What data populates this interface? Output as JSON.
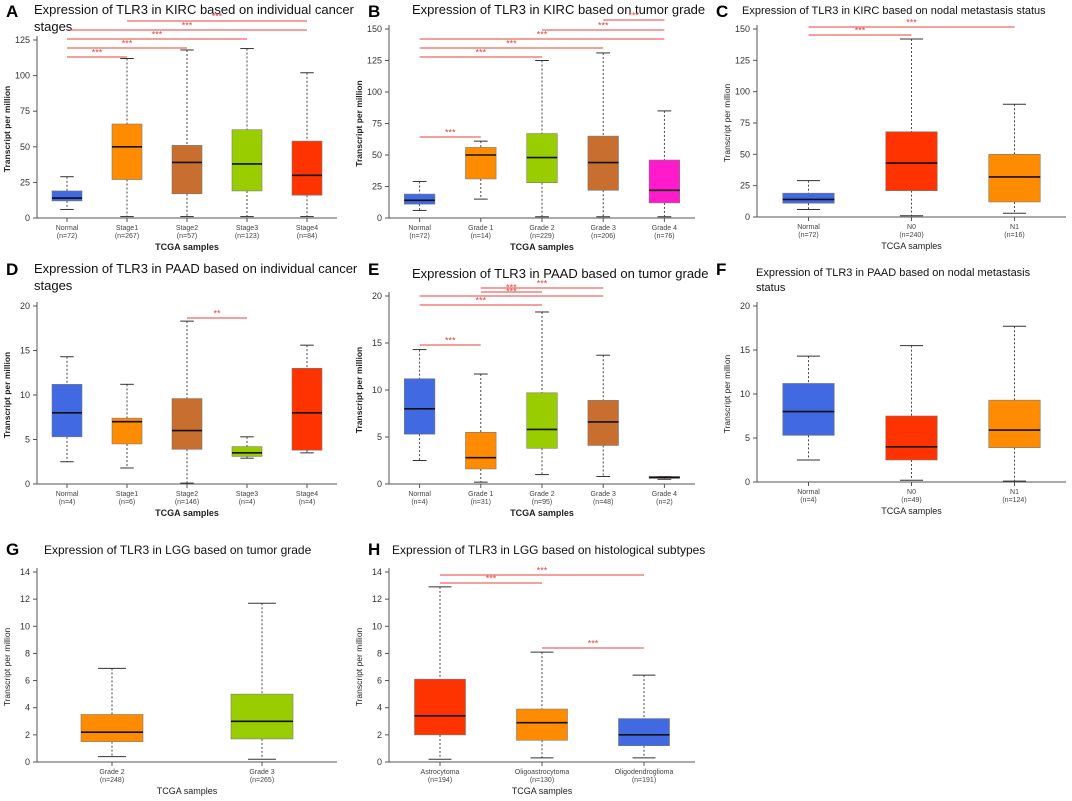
{
  "figure": {
    "significance_color": "#e8423f",
    "box_outline_color": "#7a7a7a",
    "whisker_color": "#333333",
    "median_color": "#111111"
  },
  "chart_data": [
    {
      "id": "A",
      "type": "boxplot",
      "title": "Expression of TLR3 in KIRC based on individual cancer stages",
      "title_lines": [
        "Expression of TLR3 in KIRC based on individual cancer",
        "stages"
      ],
      "xlabel": "TCGA samples",
      "ylabel": "Transcript per million",
      "ylim": [
        0,
        125
      ],
      "yticks": [
        0,
        25,
        50,
        75,
        100,
        125
      ],
      "categories": [
        "Normal",
        "Stage1",
        "Stage2",
        "Stage3",
        "Stage4"
      ],
      "n_labels": [
        "(n=72)",
        "(n=267)",
        "(n=57)",
        "(n=123)",
        "(n=84)"
      ],
      "colors": [
        "#4169e1",
        "#ff8c00",
        "#c86e2e",
        "#9acd00",
        "#ff3300"
      ],
      "boxes": [
        {
          "min": 6,
          "q1": 12,
          "median": 14,
          "q3": 19,
          "max": 29
        },
        {
          "min": 1,
          "q1": 27,
          "median": 50,
          "q3": 66,
          "max": 112
        },
        {
          "min": 1,
          "q1": 17,
          "median": 39,
          "q3": 51,
          "max": 118
        },
        {
          "min": 1,
          "q1": 19,
          "median": 38,
          "q3": 62,
          "max": 119
        },
        {
          "min": 1,
          "q1": 16,
          "median": 30,
          "q3": 54,
          "max": 102
        }
      ],
      "significance": [
        {
          "from": 0,
          "to": 1,
          "label": "***"
        },
        {
          "from": 0,
          "to": 2,
          "label": "***"
        },
        {
          "from": 0,
          "to": 3,
          "label": "***"
        },
        {
          "from": 0,
          "to": 4,
          "label": "***"
        },
        {
          "from": 1,
          "to": 4,
          "label": "***"
        }
      ]
    },
    {
      "id": "B",
      "type": "boxplot",
      "title": "Expression of TLR3 in KIRC based on tumor grade",
      "title_lines": [
        "Expression of TLR3 in KIRC based on tumor grade"
      ],
      "xlabel": "TCGA samples",
      "ylabel": "Transcript per million",
      "ylim": [
        0,
        150
      ],
      "yticks": [
        0,
        25,
        50,
        75,
        100,
        125,
        150
      ],
      "categories": [
        "Normal",
        "Grade 1",
        "Grade 2",
        "Grade 3",
        "Grade 4"
      ],
      "n_labels": [
        "(n=72)",
        "(n=14)",
        "(n=229)",
        "(n=206)",
        "(n=76)"
      ],
      "colors": [
        "#4169e1",
        "#ff8c00",
        "#9acd00",
        "#c86e2e",
        "#ff1acb"
      ],
      "boxes": [
        {
          "min": 6,
          "q1": 11,
          "median": 14,
          "q3": 19,
          "max": 29
        },
        {
          "min": 15,
          "q1": 31,
          "median": 50,
          "q3": 56,
          "max": 61
        },
        {
          "min": 1,
          "q1": 28,
          "median": 48,
          "q3": 67,
          "max": 125
        },
        {
          "min": 1,
          "q1": 22,
          "median": 44,
          "q3": 65,
          "max": 131
        },
        {
          "min": 1,
          "q1": 12,
          "median": 22,
          "q3": 46,
          "max": 85
        }
      ],
      "significance": [
        {
          "from": 0,
          "to": 1,
          "label": "***"
        },
        {
          "from": 0,
          "to": 2,
          "label": "***"
        },
        {
          "from": 0,
          "to": 3,
          "label": "***"
        },
        {
          "from": 0,
          "to": 4,
          "label": "***"
        },
        {
          "from": 2,
          "to": 4,
          "label": "***"
        },
        {
          "from": 3,
          "to": 4,
          "label": "***"
        }
      ]
    },
    {
      "id": "C",
      "type": "boxplot",
      "title": "Expression of TLR3 in KIRC based on nodal metastasis status",
      "title_lines": [
        "Expression of TLR3 in KIRC based on nodal metastasis status"
      ],
      "xlabel": "TCGA samples",
      "ylabel": "Transcript per million",
      "ylim": [
        0,
        150
      ],
      "yticks": [
        0,
        25,
        50,
        75,
        100,
        125,
        150
      ],
      "categories": [
        "Normal",
        "N0",
        "N1"
      ],
      "n_labels": [
        "(n=72)",
        "(n=240)",
        "(n=16)"
      ],
      "colors": [
        "#4169e1",
        "#ff3300",
        "#ff8c00"
      ],
      "boxes": [
        {
          "min": 6,
          "q1": 11,
          "median": 14,
          "q3": 19,
          "max": 29
        },
        {
          "min": 1,
          "q1": 21,
          "median": 43,
          "q3": 68,
          "max": 142
        },
        {
          "min": 3,
          "q1": 12,
          "median": 32,
          "q3": 50,
          "max": 90
        }
      ],
      "significance": [
        {
          "from": 0,
          "to": 1,
          "label": "***"
        },
        {
          "from": 0,
          "to": 2,
          "label": "***"
        }
      ]
    },
    {
      "id": "D",
      "type": "boxplot",
      "title": "Expression of TLR3 in PAAD based on individual cancer stages",
      "title_lines": [
        "Expression of TLR3 in PAAD based on individual cancer",
        "stages"
      ],
      "xlabel": "TCGA samples",
      "ylabel": "Transcript per million",
      "ylim": [
        0,
        20
      ],
      "yticks": [
        0,
        5,
        10,
        15,
        20
      ],
      "categories": [
        "Normal",
        "Stage1",
        "Stage2",
        "Stage3",
        "Stage4"
      ],
      "n_labels": [
        "(n=4)",
        "(n=6)",
        "(n=146)",
        "(n=4)",
        "(n=4)"
      ],
      "colors": [
        "#4169e1",
        "#ff8c00",
        "#c86e2e",
        "#9acd00",
        "#ff3300"
      ],
      "boxes": [
        {
          "min": 2.5,
          "q1": 5.3,
          "median": 8.0,
          "q3": 11.2,
          "max": 14.3
        },
        {
          "min": 1.8,
          "q1": 4.5,
          "median": 7.0,
          "q3": 7.4,
          "max": 11.2
        },
        {
          "min": 0.1,
          "q1": 3.9,
          "median": 6.0,
          "q3": 9.6,
          "max": 18.3
        },
        {
          "min": 2.9,
          "q1": 3.1,
          "median": 3.5,
          "q3": 4.2,
          "max": 5.3
        },
        {
          "min": 3.5,
          "q1": 3.8,
          "median": 8.0,
          "q3": 13.0,
          "max": 15.6
        }
      ],
      "significance": [
        {
          "from": 2,
          "to": 3,
          "label": "**"
        }
      ]
    },
    {
      "id": "E",
      "type": "boxplot",
      "title": "Expression of TLR3 in PAAD based on tumor grade",
      "title_lines": [
        "Expression of TLR3 in PAAD based on tumor grade"
      ],
      "xlabel": "TCGA samples",
      "ylabel": "Transcript per million",
      "ylim": [
        0,
        20
      ],
      "yticks": [
        0,
        5,
        10,
        15,
        20
      ],
      "categories": [
        "Normal",
        "Grade 1",
        "Grade 2",
        "Grade 3",
        "Grade 4"
      ],
      "n_labels": [
        "(n=4)",
        "(n=31)",
        "(n=95)",
        "(n=48)",
        "(n=2)"
      ],
      "colors": [
        "#4169e1",
        "#ff8c00",
        "#9acd00",
        "#c86e2e",
        "#ff1acb"
      ],
      "boxes": [
        {
          "min": 2.5,
          "q1": 5.3,
          "median": 8.0,
          "q3": 11.2,
          "max": 14.3
        },
        {
          "min": 0.2,
          "q1": 1.6,
          "median": 2.8,
          "q3": 5.5,
          "max": 11.7
        },
        {
          "min": 1.0,
          "q1": 3.8,
          "median": 5.8,
          "q3": 9.7,
          "max": 18.3
        },
        {
          "min": 0.8,
          "q1": 4.1,
          "median": 6.6,
          "q3": 8.9,
          "max": 13.7
        },
        {
          "min": 0.5,
          "q1": 0.6,
          "median": 0.7,
          "q3": 0.8,
          "max": 0.8
        }
      ],
      "significance": [
        {
          "from": 0,
          "to": 1,
          "label": "***"
        },
        {
          "from": 0,
          "to": 2,
          "label": "***"
        },
        {
          "from": 0,
          "to": 3,
          "label": "***"
        },
        {
          "from": 1,
          "to": 2,
          "label": "***"
        },
        {
          "from": 1,
          "to": 3,
          "label": "***"
        }
      ]
    },
    {
      "id": "F",
      "type": "boxplot",
      "title": "Expression of TLR3 in PAAD based on nodal metastasis status",
      "title_lines": [
        "Expression of TLR3 in PAAD based on nodal metastasis",
        "status"
      ],
      "xlabel": "TCGA samples",
      "ylabel": "Transcript per million",
      "ylim": [
        0,
        20
      ],
      "yticks": [
        0,
        5,
        10,
        15,
        20
      ],
      "categories": [
        "Normal",
        "N0",
        "N1"
      ],
      "n_labels": [
        "(n=4)",
        "(n=49)",
        "(n=124)"
      ],
      "colors": [
        "#4169e1",
        "#ff3300",
        "#ff8c00"
      ],
      "boxes": [
        {
          "min": 2.5,
          "q1": 5.3,
          "median": 8.0,
          "q3": 11.2,
          "max": 14.3
        },
        {
          "min": 0.2,
          "q1": 2.5,
          "median": 4.0,
          "q3": 7.5,
          "max": 15.5
        },
        {
          "min": 0.1,
          "q1": 3.9,
          "median": 5.9,
          "q3": 9.3,
          "max": 17.7
        }
      ],
      "significance": []
    },
    {
      "id": "G",
      "type": "boxplot",
      "title": "Expression of TLR3 in LGG based on tumor grade",
      "title_lines": [
        "Expression of TLR3 in LGG based on tumor grade"
      ],
      "xlabel": "TCGA samples",
      "ylabel": "Transcript per million",
      "ylim": [
        0,
        14
      ],
      "yticks": [
        0,
        2,
        4,
        6,
        8,
        10,
        12,
        14
      ],
      "categories": [
        "Grade 2",
        "Grade 3"
      ],
      "n_labels": [
        "(n=248)",
        "(n=265)"
      ],
      "colors": [
        "#ff8c00",
        "#9acd00"
      ],
      "boxes": [
        {
          "min": 0.4,
          "q1": 1.5,
          "median": 2.2,
          "q3": 3.5,
          "max": 6.9
        },
        {
          "min": 0.2,
          "q1": 1.7,
          "median": 3.0,
          "q3": 5.0,
          "max": 11.7
        }
      ],
      "significance": []
    },
    {
      "id": "H",
      "type": "boxplot",
      "title": "Expression of TLR3 in LGG based on histological subtypes",
      "title_lines": [
        "Expression of TLR3 in LGG based on histological subtypes"
      ],
      "xlabel": "TCGA samples",
      "ylabel": "Transcript per million",
      "ylim": [
        0,
        14
      ],
      "yticks": [
        0,
        2,
        4,
        6,
        8,
        10,
        12,
        14
      ],
      "categories": [
        "Astrocytoma",
        "Oligoastrocytoma",
        "Oligodendroglioma"
      ],
      "n_labels": [
        "(n=194)",
        "(n=130)",
        "(n=191)"
      ],
      "colors": [
        "#ff3300",
        "#ff8c00",
        "#4169e1"
      ],
      "boxes": [
        {
          "min": 0.2,
          "q1": 2.0,
          "median": 3.4,
          "q3": 6.1,
          "max": 12.9
        },
        {
          "min": 0.3,
          "q1": 1.6,
          "median": 2.9,
          "q3": 3.9,
          "max": 8.1
        },
        {
          "min": 0.3,
          "q1": 1.2,
          "median": 2.0,
          "q3": 3.2,
          "max": 6.4
        }
      ],
      "significance": [
        {
          "from": 0,
          "to": 1,
          "label": "***"
        },
        {
          "from": 0,
          "to": 2,
          "label": "***"
        },
        {
          "from": 1,
          "to": 2,
          "label": "***"
        }
      ]
    }
  ]
}
